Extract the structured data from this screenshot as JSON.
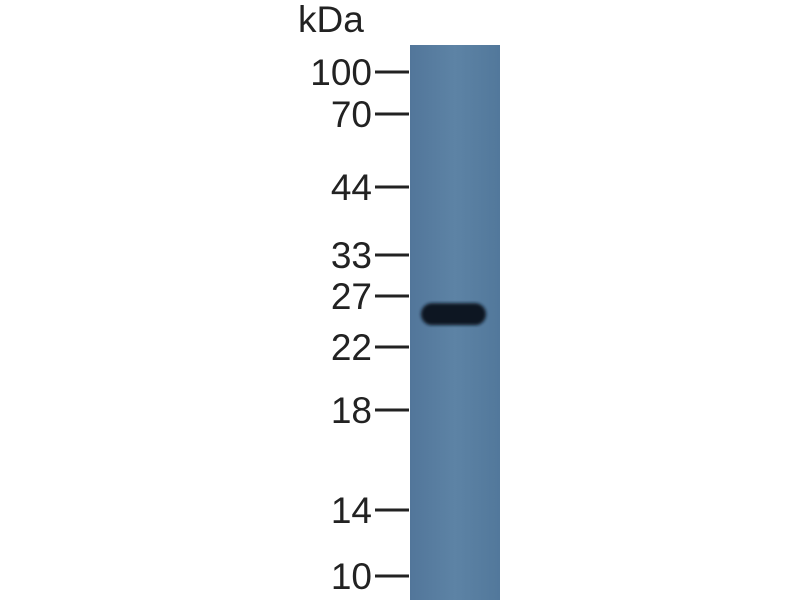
{
  "unit_label": "kDa",
  "markers": [
    {
      "label": "100",
      "kda": 100
    },
    {
      "label": "70",
      "kda": 70
    },
    {
      "label": "44",
      "kda": 44
    },
    {
      "label": "33",
      "kda": 33
    },
    {
      "label": "27",
      "kda": 27
    },
    {
      "label": "22",
      "kda": 22
    },
    {
      "label": "18",
      "kda": 18
    },
    {
      "label": "14",
      "kda": 14
    },
    {
      "label": "10",
      "kda": 10
    }
  ],
  "lanes": [
    {
      "bands": [
        {
          "kda": 25,
          "intensity": "strong"
        }
      ]
    }
  ],
  "colors": {
    "membrane": "#5a80a2",
    "band": "#101820",
    "text": "#222222"
  }
}
